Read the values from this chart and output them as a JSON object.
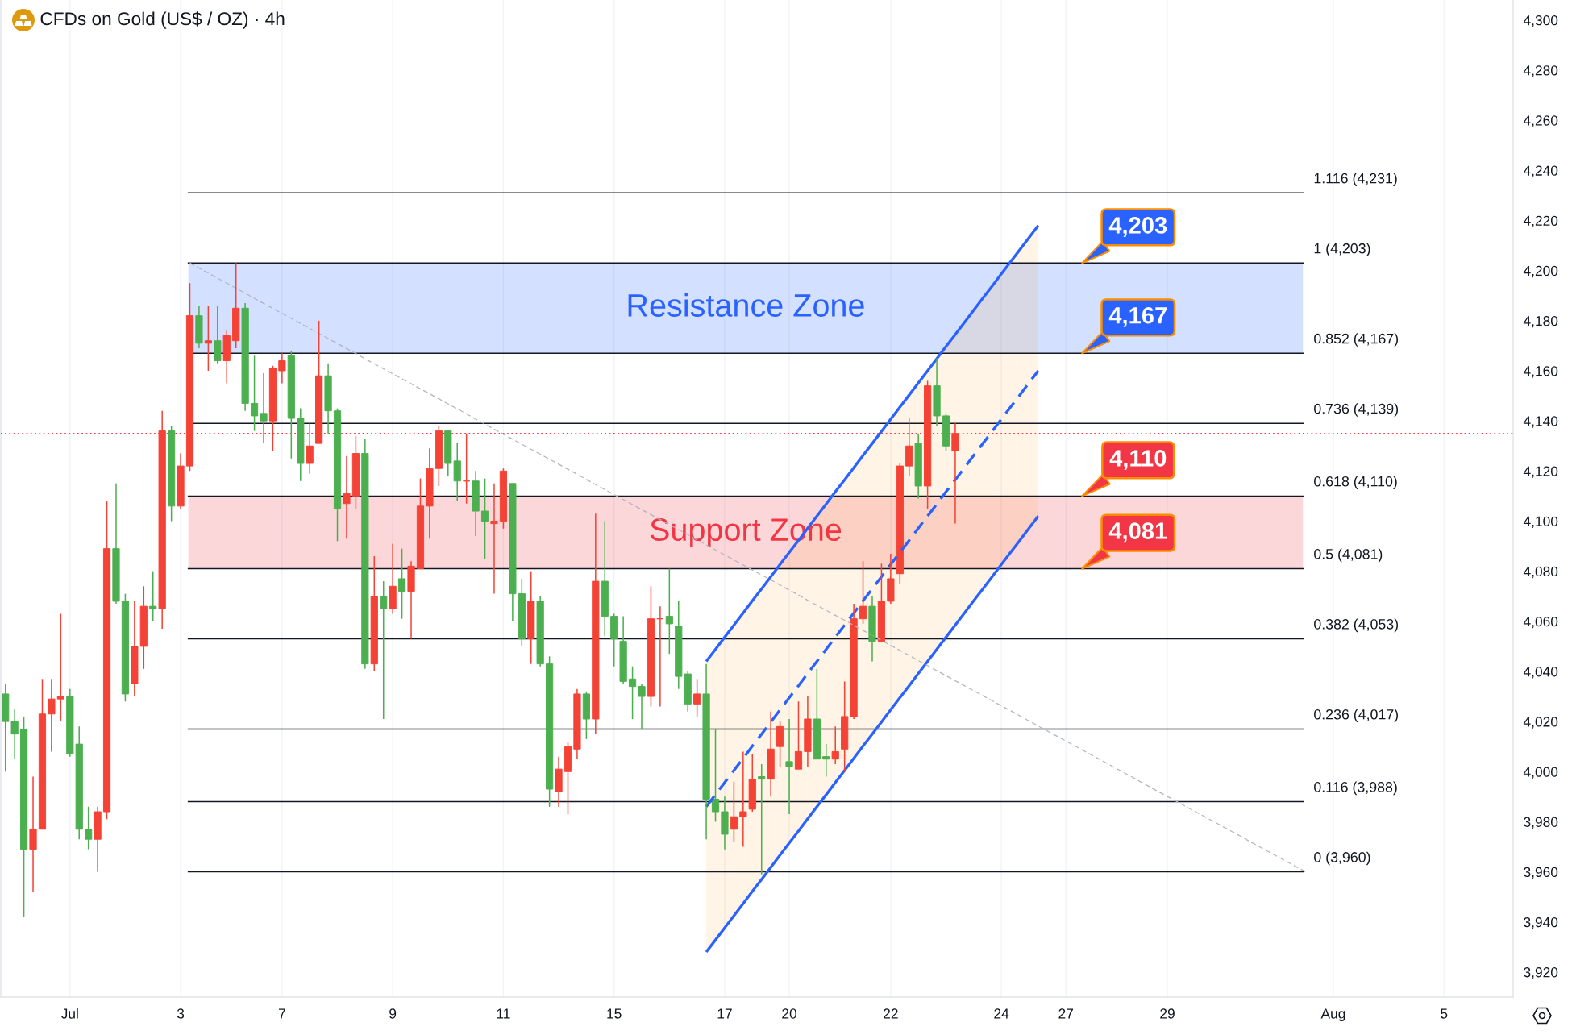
{
  "chart_data": {
    "type": "candlestick",
    "title": "CFDs on Gold (US$ / OZ) · 4h",
    "categories": [
      null,
      null,
      null,
      null,
      null,
      null,
      null,
      "Jul",
      null,
      null,
      null,
      null,
      null,
      null,
      null,
      null,
      null,
      null,
      null,
      "3",
      null,
      null,
      null,
      null,
      null,
      null,
      null,
      null,
      null,
      null,
      "7",
      null,
      null,
      null,
      null,
      null,
      null,
      null,
      null,
      null,
      null,
      null,
      "9",
      null,
      null,
      null,
      null,
      null,
      null,
      null,
      null,
      null,
      null,
      null,
      "11",
      null,
      null,
      null,
      null,
      null,
      null,
      null,
      null,
      null,
      null,
      null,
      "15",
      null,
      null,
      null,
      null,
      null,
      null,
      null,
      null,
      null,
      null,
      null,
      "17",
      null,
      null,
      null,
      null,
      null,
      null,
      "20",
      null,
      null,
      null,
      null,
      null,
      null,
      null,
      null,
      null,
      null,
      "22",
      null,
      null,
      null,
      null,
      null,
      null,
      null,
      null,
      null,
      null,
      null,
      "24",
      null,
      null,
      null,
      null,
      null,
      null,
      "27",
      null,
      null,
      null,
      null,
      null,
      null,
      null,
      null,
      null,
      null,
      "29",
      null,
      null,
      null,
      null,
      null,
      null,
      null,
      null,
      null,
      null,
      null,
      null,
      null,
      null,
      null,
      null,
      null,
      "Aug",
      null,
      null,
      null,
      null,
      null,
      null,
      null,
      null,
      null,
      null,
      null,
      "5",
      null,
      null,
      null,
      null,
      null,
      null,
      null
    ],
    "series": [
      {
        "color": "#f44336",
        "ohlc": [
          null,
          null,
          null,
          [
            3969,
            3998,
            3952,
            3977
          ],
          [
            3977,
            4037,
            3977,
            4023
          ],
          [
            4023,
            4037,
            4008,
            4029
          ],
          [
            4029,
            4063,
            4020,
            4030
          ],
          null,
          null,
          null,
          [
            3973,
            3986,
            3960,
            3984
          ],
          [
            3984,
            4108,
            3981,
            4089
          ],
          null,
          null,
          [
            4035,
            4068,
            4030,
            4050
          ],
          [
            4050,
            4074,
            4041,
            4066
          ],
          null,
          [
            4065,
            4144,
            4057,
            4136
          ],
          null,
          [
            4106,
            4127,
            4105,
            4122
          ],
          [
            4122,
            4195,
            4120,
            4182
          ],
          null,
          [
            4171,
            4186,
            4160,
            4172
          ],
          null,
          [
            4164,
            4176,
            4155,
            4174
          ],
          [
            4172,
            4203,
            4169,
            4185
          ],
          null,
          null,
          null,
          [
            4140,
            4162,
            4128,
            4161
          ],
          [
            4160,
            4167,
            4155,
            4164
          ],
          null,
          null,
          [
            4123,
            4139,
            4119,
            4130
          ],
          [
            4131,
            4180,
            4131,
            4158
          ],
          null,
          null,
          [
            4107,
            4126,
            4093,
            4111
          ],
          [
            4110,
            4134,
            4105,
            4127
          ],
          null,
          [
            4043,
            4086,
            4040,
            4070
          ],
          null,
          [
            4065,
            4091,
            4063,
            4074
          ],
          null,
          [
            4072,
            4084,
            4053,
            4082
          ],
          [
            4081,
            4117,
            4081,
            4106
          ],
          [
            4106,
            4129,
            4093,
            4121
          ],
          [
            4121,
            4138,
            4114,
            4136
          ],
          null,
          null,
          [
            4116,
            4135,
            4107,
            4116
          ],
          null,
          null,
          [
            4099,
            4115,
            4071,
            4100
          ],
          [
            4100,
            4121,
            4097,
            4120
          ],
          null,
          null,
          [
            4053,
            4080,
            4043,
            4068
          ],
          null,
          null,
          [
            3992,
            4006,
            3986,
            4001
          ],
          [
            4000,
            4012,
            3983,
            4010
          ],
          [
            4009,
            4033,
            4005,
            4031
          ],
          null,
          [
            4021,
            4103,
            4015,
            4076
          ],
          null,
          null,
          null,
          null,
          null,
          [
            4030,
            4074,
            4026,
            4061
          ],
          [
            4061,
            4066,
            4026,
            4061
          ],
          null,
          null,
          null,
          [
            4027,
            4037,
            4022,
            4031
          ],
          null,
          null,
          null,
          [
            3977,
            3996,
            3972,
            3982
          ],
          [
            3982,
            4008,
            3970,
            3984
          ],
          [
            3985,
            4007,
            3984,
            3997
          ],
          null,
          [
            3997,
            4024,
            3990,
            4009
          ],
          [
            4010,
            4020,
            4002,
            4018
          ],
          null,
          [
            4001,
            4028,
            4001,
            4008
          ],
          [
            4008,
            4030,
            4002,
            4021
          ],
          null,
          null,
          [
            4005,
            4018,
            4003,
            4008
          ],
          [
            4009,
            4036,
            4000,
            4022
          ],
          [
            4022,
            4067,
            4021,
            4061
          ],
          [
            4061,
            4084,
            4059,
            4066
          ],
          null,
          [
            4052,
            4083,
            4052,
            4068
          ],
          [
            4068,
            4087,
            4067,
            4077
          ],
          [
            4079,
            4123,
            4075,
            4122
          ],
          [
            4122,
            4141,
            4118,
            4130
          ],
          null,
          [
            4114,
            4156,
            4105,
            4154
          ],
          null,
          null,
          [
            4128,
            4139,
            4099,
            4135
          ],
          null,
          null,
          null,
          null,
          null,
          null,
          null,
          null,
          null,
          null,
          null,
          null,
          null,
          null,
          null,
          null,
          null,
          null,
          null,
          null,
          null,
          null,
          null,
          null,
          null,
          null,
          null,
          null,
          null,
          null,
          null,
          null,
          null,
          null,
          null,
          null,
          null,
          null,
          null,
          null,
          null,
          null,
          null,
          null,
          null,
          null,
          null,
          null,
          null,
          null,
          null,
          null,
          null,
          null,
          null,
          null,
          null,
          null,
          null,
          null
        ]
      },
      {
        "color": "#4caf50",
        "ohlc": [
          [
            4031,
            4035,
            4000,
            4020
          ],
          [
            4020,
            4025,
            4005,
            4015
          ],
          [
            4017,
            4022,
            3942,
            3969
          ],
          null,
          null,
          null,
          null,
          [
            4030,
            4033,
            4006,
            4007
          ],
          [
            4011,
            4018,
            3973,
            3977
          ],
          [
            3977,
            3986,
            3969,
            3973
          ],
          null,
          null,
          [
            4089,
            4115,
            4067,
            4068
          ],
          [
            4068,
            4071,
            4028,
            4031
          ],
          null,
          null,
          [
            4066,
            4080,
            4060,
            4065
          ],
          null,
          [
            4136,
            4138,
            4100,
            4106
          ],
          null,
          null,
          [
            4182,
            4186,
            4169,
            4171
          ],
          null,
          [
            4172,
            4186,
            4163,
            4164
          ],
          null,
          null,
          [
            4185,
            4187,
            4144,
            4147
          ],
          [
            4147,
            4166,
            4136,
            4142
          ],
          [
            4143,
            4159,
            4131,
            4140
          ],
          null,
          null,
          [
            4166,
            4168,
            4125,
            4141
          ],
          [
            4141,
            4145,
            4116,
            4123
          ],
          null,
          null,
          [
            4158,
            4163,
            4135,
            4144
          ],
          [
            4144,
            4145,
            4092,
            4105
          ],
          null,
          null,
          [
            4127,
            4133,
            4041,
            4043
          ],
          null,
          [
            4070,
            4076,
            4021,
            4065
          ],
          null,
          [
            4077,
            4089,
            4061,
            4072
          ],
          null,
          null,
          null,
          null,
          [
            4136,
            4136,
            4118,
            4123
          ],
          [
            4124,
            4131,
            4108,
            4116
          ],
          null,
          [
            4116,
            4120,
            4094,
            4104
          ],
          [
            4104,
            4117,
            4085,
            4100
          ],
          null,
          null,
          [
            4115,
            4115,
            4060,
            4071
          ],
          [
            4071,
            4077,
            4050,
            4053
          ],
          null,
          [
            4068,
            4070,
            4042,
            4043
          ],
          [
            4043,
            4046,
            3986,
            3993
          ],
          null,
          null,
          null,
          [
            4031,
            4032,
            4013,
            4021
          ],
          null,
          [
            4076,
            4100,
            4054,
            4062
          ],
          [
            4062,
            4063,
            4042,
            4053
          ],
          [
            4052,
            4062,
            4035,
            4036
          ],
          [
            4037,
            4042,
            4021,
            4034
          ],
          [
            4034,
            4035,
            4017,
            4030
          ],
          null,
          null,
          [
            4062,
            4081,
            4047,
            4059
          ],
          [
            4058,
            4068,
            4033,
            4038
          ],
          [
            4039,
            4040,
            4024,
            4027
          ],
          null,
          [
            4031,
            4043,
            3973,
            3989
          ],
          [
            3989,
            4017,
            3980,
            3984
          ],
          [
            3984,
            3990,
            3969,
            3975
          ],
          null,
          null,
          null,
          [
            3998,
            4003,
            3959,
            3997
          ],
          null,
          null,
          [
            4004,
            4021,
            3983,
            4002
          ],
          null,
          null,
          [
            4021,
            4041,
            4005,
            4005
          ],
          [
            4006,
            4011,
            3998,
            4005
          ],
          null,
          null,
          null,
          null,
          [
            4066,
            4070,
            4044,
            4052
          ],
          null,
          null,
          null,
          null,
          [
            4131,
            4135,
            4109,
            4114
          ],
          null,
          [
            4154,
            4165,
            4138,
            4142
          ],
          [
            4142,
            4143,
            4128,
            4130
          ],
          null,
          null,
          null,
          null,
          null,
          null,
          null,
          null,
          null,
          null,
          null,
          null,
          null,
          null,
          null,
          null,
          null,
          null,
          null,
          null,
          null,
          null,
          null,
          null,
          null,
          null,
          null,
          null,
          null,
          null,
          null,
          null,
          null,
          null,
          null,
          null,
          null,
          null,
          null,
          null,
          null,
          null,
          null,
          null,
          null,
          null,
          null,
          null,
          null,
          null,
          null,
          null,
          null,
          null,
          null,
          null,
          null,
          null,
          null,
          null,
          null
        ]
      },
      {
        "type": "line",
        "color": "#2962ff",
        "values": [
          null,
          null,
          null,
          null,
          null,
          null,
          null,
          null,
          null,
          null,
          null,
          null,
          null,
          null,
          null,
          null,
          null,
          null,
          null,
          null,
          null,
          null,
          null,
          null,
          null,
          null,
          null,
          null,
          null,
          null,
          null,
          null,
          null,
          null,
          null,
          null,
          null,
          null,
          null,
          null,
          null,
          null,
          null,
          null,
          null,
          null,
          null,
          null,
          null,
          null,
          null,
          null,
          null,
          null,
          null,
          null,
          null,
          null,
          null,
          null,
          null,
          null,
          null,
          null,
          null,
          null,
          null,
          null,
          null,
          null,
          null,
          null,
          null,
          null,
          null,
          null,
          4044,
          4048.8,
          4053.7,
          4058.5,
          4063.3,
          4068.2,
          4073,
          4077.8,
          4082.7,
          4087.5,
          4092.3,
          4097.2,
          4102,
          4106.8,
          4111.7,
          4116.5,
          4121.3,
          4126.2,
          4131,
          4135.8,
          4140.7,
          4145.5,
          4150.3,
          4155.2,
          4160,
          4164.8,
          4169.7,
          4174.5,
          4179.3,
          4184.2,
          4189,
          4193.8,
          4198.7,
          4203.5,
          4208.3,
          4213.2,
          4218,
          null,
          null,
          null,
          null,
          null,
          null,
          null,
          null,
          null,
          null,
          null,
          null,
          null,
          null,
          null,
          null,
          null,
          null,
          null,
          null,
          null,
          null,
          null,
          null,
          null,
          null,
          null,
          null,
          null,
          null,
          null,
          null,
          null,
          null,
          null,
          null,
          null,
          null,
          null,
          null,
          null,
          null,
          null,
          null,
          null,
          null,
          null,
          null,
          null,
          null,
          null
        ]
      },
      {
        "type": "line",
        "color": "#2962ff",
        "line_style": "dashed",
        "values": [
          null,
          null,
          null,
          null,
          null,
          null,
          null,
          null,
          null,
          null,
          null,
          null,
          null,
          null,
          null,
          null,
          null,
          null,
          null,
          null,
          null,
          null,
          null,
          null,
          null,
          null,
          null,
          null,
          null,
          null,
          null,
          null,
          null,
          null,
          null,
          null,
          null,
          null,
          null,
          null,
          null,
          null,
          null,
          null,
          null,
          null,
          null,
          null,
          null,
          null,
          null,
          null,
          null,
          null,
          null,
          null,
          null,
          null,
          null,
          null,
          null,
          null,
          null,
          null,
          null,
          null,
          null,
          null,
          null,
          null,
          null,
          null,
          null,
          null,
          null,
          null,
          3986,
          3990.8,
          3995.7,
          4000.5,
          4005.3,
          4010.2,
          4015,
          4019.8,
          4024.7,
          4029.5,
          4034.3,
          4039.2,
          4044,
          4048.8,
          4053.7,
          4058.5,
          4063.3,
          4068.2,
          4073,
          4077.8,
          4082.7,
          4087.5,
          4092.3,
          4097.2,
          4102,
          4106.8,
          4111.7,
          4116.5,
          4121.3,
          4126.2,
          4131,
          4135.8,
          4140.7,
          4145.5,
          4150.3,
          4155.2,
          4160,
          null,
          null,
          null,
          null,
          null,
          null,
          null,
          null,
          null,
          null,
          null,
          null,
          null,
          null,
          null,
          null,
          null,
          null,
          null,
          null,
          null,
          null,
          null,
          null,
          null,
          null,
          null,
          null,
          null,
          null,
          null,
          null,
          null,
          null,
          null,
          null,
          null,
          null,
          null,
          null,
          null,
          null,
          null,
          null,
          null,
          null,
          null,
          null,
          null,
          null,
          null
        ],
        "lower": [
          null,
          null,
          null,
          null,
          null,
          null,
          null,
          null,
          null,
          null,
          null,
          null,
          null,
          null,
          null,
          null,
          null,
          null,
          null,
          null,
          null,
          null,
          null,
          null,
          null,
          null,
          null,
          null,
          null,
          null,
          null,
          null,
          null,
          null,
          null,
          null,
          null,
          null,
          null,
          null,
          null,
          null,
          null,
          null,
          null,
          null,
          null,
          null,
          null,
          null,
          null,
          null,
          null,
          null,
          null,
          null,
          null,
          null,
          null,
          null,
          null,
          null,
          null,
          null,
          null,
          null,
          null,
          null,
          null,
          null,
          null,
          null,
          null,
          null,
          null,
          null,
          3928,
          3932.8,
          3937.7,
          3942.5,
          3947.3,
          3952.2,
          3957,
          3961.8,
          3966.7,
          3971.5,
          3976.3,
          3981.2,
          3986,
          3990.8,
          3995.7,
          4000.5,
          4005.3,
          4010.2,
          4015,
          4019.8,
          4024.7,
          4029.5,
          4034.3,
          4039.2,
          4044,
          4048.8,
          4053.7,
          4058.5,
          4063.3,
          4068.2,
          4073,
          4077.8,
          4082.7,
          4087.5,
          4092.3,
          4097.2,
          4102,
          null,
          null,
          null,
          null,
          null,
          null,
          null,
          null,
          null,
          null,
          null,
          null,
          null,
          null,
          null,
          null,
          null,
          null,
          null,
          null,
          null,
          null,
          null,
          null,
          null,
          null,
          null,
          null,
          null,
          null,
          null,
          null,
          null,
          null,
          null,
          null,
          null,
          null,
          null,
          null,
          null,
          null,
          null,
          null,
          null,
          null,
          null,
          null,
          null,
          null,
          null
        ],
        "upper": [
          null,
          null,
          null,
          null,
          null,
          null,
          null,
          null,
          null,
          null,
          null,
          null,
          null,
          null,
          null,
          null,
          null,
          null,
          null,
          null,
          null,
          null,
          null,
          null,
          null,
          null,
          null,
          null,
          null,
          null,
          null,
          null,
          null,
          null,
          null,
          null,
          null,
          null,
          null,
          null,
          null,
          null,
          null,
          null,
          null,
          null,
          null,
          null,
          null,
          null,
          null,
          null,
          null,
          null,
          null,
          null,
          null,
          null,
          null,
          null,
          null,
          null,
          null,
          null,
          null,
          null,
          null,
          null,
          null,
          null,
          null,
          null,
          null,
          null,
          null,
          null,
          4044,
          4048.8,
          4053.7,
          4058.5,
          4063.3,
          4068.2,
          4073,
          4077.8,
          4082.7,
          4087.5,
          4092.3,
          4097.2,
          4102,
          4106.8,
          4111.7,
          4116.5,
          4121.3,
          4126.2,
          4131,
          4135.8,
          4140.7,
          4145.5,
          4150.3,
          4155.2,
          4160,
          4164.8,
          4169.7,
          4174.5,
          4179.3,
          4184.2,
          4189,
          4193.8,
          4198.7,
          4203.5,
          4208.3,
          4213.2,
          4218,
          null,
          null,
          null,
          null,
          null,
          null,
          null,
          null,
          null,
          null,
          null,
          null,
          null,
          null,
          null,
          null,
          null,
          null,
          null,
          null,
          null,
          null,
          null,
          null,
          null,
          null,
          null,
          null,
          null,
          null,
          null,
          null,
          null,
          null,
          null,
          null,
          null,
          null,
          null,
          null,
          null,
          null,
          null,
          null,
          null,
          null,
          null,
          null,
          null,
          null,
          null
        ]
      },
      {
        "type": "line",
        "color": "#2962ff",
        "values": [
          null,
          null,
          null,
          null,
          null,
          null,
          null,
          null,
          null,
          null,
          null,
          null,
          null,
          null,
          null,
          null,
          null,
          null,
          null,
          null,
          null,
          null,
          null,
          null,
          null,
          null,
          null,
          null,
          null,
          null,
          null,
          null,
          null,
          null,
          null,
          null,
          null,
          null,
          null,
          null,
          null,
          null,
          null,
          null,
          null,
          null,
          null,
          null,
          null,
          null,
          null,
          null,
          null,
          null,
          null,
          null,
          null,
          null,
          null,
          null,
          null,
          null,
          null,
          null,
          null,
          null,
          null,
          null,
          null,
          null,
          null,
          null,
          null,
          null,
          null,
          null,
          3928,
          3932.8,
          3937.7,
          3942.5,
          3947.3,
          3952.2,
          3957,
          3961.8,
          3966.7,
          3971.5,
          3976.3,
          3981.2,
          3986,
          3990.8,
          3995.7,
          4000.5,
          4005.3,
          4010.2,
          4015,
          4019.8,
          4024.7,
          4029.5,
          4034.3,
          4039.2,
          4044,
          4048.8,
          4053.7,
          4058.5,
          4063.3,
          4068.2,
          4073,
          4077.8,
          4082.7,
          4087.5,
          4092.3,
          4097.2,
          4102,
          null,
          null,
          null,
          null,
          null,
          null,
          null,
          null,
          null,
          null,
          null,
          null,
          null,
          null,
          null,
          null,
          null,
          null,
          null,
          null,
          null,
          null,
          null,
          null,
          null,
          null,
          null,
          null,
          null,
          null,
          null,
          null,
          null,
          null,
          null,
          null,
          null,
          null,
          null,
          null,
          null,
          null,
          null,
          null,
          null,
          null,
          null,
          null,
          null,
          null,
          null
        ]
      },
      {
        "type": "line",
        "color": "#b2b5be",
        "line_style": "dashed",
        "values": [
          null,
          null,
          null,
          null,
          null,
          null,
          null,
          null,
          null,
          null,
          null,
          null,
          null,
          null,
          null,
          null,
          null,
          null,
          null,
          null,
          4203,
          4201,
          4199,
          4197,
          4195,
          4193,
          4191,
          4188.9,
          4186.9,
          4184.9,
          4182.9,
          4180.9,
          4178.9,
          4176.9,
          4174.9,
          4172.9,
          4170.9,
          4168.9,
          4166.9,
          4164.8,
          4162.8,
          4160.8,
          4158.8,
          4156.8,
          4154.8,
          4152.8,
          4150.8,
          4148.8,
          4146.8,
          4144.8,
          4142.8,
          4140.7,
          4138.7,
          4136.7,
          4134.7,
          4132.7,
          4130.7,
          4128.7,
          4126.7,
          4124.7,
          4122.7,
          4120.7,
          4118.7,
          4116.6,
          4114.6,
          4112.6,
          4110.6,
          4108.6,
          4106.6,
          4104.6,
          4102.6,
          4100.6,
          4098.6,
          4096.6,
          4094.6,
          4092.5,
          4090.5,
          4088.5,
          4086.5,
          4084.5,
          4082.5,
          4080.5,
          4078.5,
          4076.5,
          4074.5,
          4072.5,
          4070.5,
          4068.4,
          4066.4,
          4064.4,
          4062.4,
          4060.4,
          4058.4,
          4056.4,
          4054.4,
          4052.4,
          4050.4,
          4048.4,
          4046.4,
          4044.3,
          4042.3,
          4040.3,
          4038.3,
          4036.3,
          4034.3,
          4032.3,
          4030.3,
          4028.3,
          4026.3,
          4024.3,
          4022.3,
          4020.2,
          4018.2,
          4016.2,
          4014.2,
          4012.2,
          4010.2,
          4008.2,
          4006.2,
          4004.2,
          4002.2,
          4000.2,
          3998.2,
          3996.1,
          3994.1,
          3992.1,
          3990.1,
          3988.1,
          3986.1,
          3984.1,
          3982.1,
          3980.1,
          3978.1,
          3976.1,
          3974.1,
          3972,
          3970,
          3968,
          3966,
          3964,
          3962,
          3960,
          null,
          null,
          null,
          null,
          null,
          null,
          null,
          null,
          null,
          null,
          null,
          null,
          null,
          null,
          null,
          null,
          null,
          null,
          null,
          null,
          null,
          null
        ]
      }
    ],
    "ylim": [
      3910,
      4308
    ],
    "yticks": [
      {
        "value": 3920,
        "label": "3,920"
      },
      {
        "value": 3940,
        "label": "3,940"
      },
      {
        "value": 3960,
        "label": "3,960"
      },
      {
        "value": 3980,
        "label": "3,980"
      },
      {
        "value": 4000,
        "label": "4,000"
      },
      {
        "value": 4020,
        "label": "4,020"
      },
      {
        "value": 4040,
        "label": "4,040"
      },
      {
        "value": 4060,
        "label": "4,060"
      },
      {
        "value": 4080,
        "label": "4,080"
      },
      {
        "value": 4100,
        "label": "4,100"
      },
      {
        "value": 4120,
        "label": "4,120"
      },
      {
        "value": 4140,
        "label": "4,140"
      },
      {
        "value": 4160,
        "label": "4,160"
      },
      {
        "value": 4180,
        "label": "4,180"
      },
      {
        "value": 4200,
        "label": "4,200"
      },
      {
        "value": 4220,
        "label": "4,220"
      },
      {
        "value": 4240,
        "label": "4,240"
      },
      {
        "value": 4260,
        "label": "4,260"
      },
      {
        "value": 4280,
        "label": "4,280"
      },
      {
        "value": 4300,
        "label": "4,300"
      }
    ],
    "grid": "x",
    "bands": [
      {
        "axis": "y",
        "from": 4167,
        "to": 4203,
        "label": "Resistance Zone",
        "color": "#2962ff"
      },
      {
        "axis": "y",
        "from": 4081,
        "to": 4110,
        "label": "Support Zone",
        "color": "#f23645"
      }
    ],
    "ref_lines": [
      {
        "axis": "y",
        "value": 4231,
        "label": "1.116 (4,231)",
        "color": "#131722"
      },
      {
        "axis": "y",
        "value": 4203,
        "label": "1 (4,203)",
        "color": "#131722"
      },
      {
        "axis": "y",
        "value": 4167,
        "label": "0.852 (4,167)",
        "color": "#131722"
      },
      {
        "axis": "y",
        "value": 4139,
        "label": "0.736 (4,139)",
        "color": "#131722"
      },
      {
        "axis": "y",
        "value": 4135,
        "color": "#f23645",
        "line_style": "dotted"
      },
      {
        "axis": "y",
        "value": 4110,
        "label": "0.618 (4,110)",
        "color": "#131722"
      },
      {
        "axis": "y",
        "value": 4081,
        "label": "0.5 (4,081)",
        "color": "#131722"
      },
      {
        "axis": "y",
        "value": 4053,
        "label": "0.382 (4,053)",
        "color": "#131722"
      },
      {
        "axis": "y",
        "value": 4017,
        "label": "0.236 (4,017)",
        "color": "#131722"
      },
      {
        "axis": "y",
        "value": 3988,
        "label": "0.116 (3,988)",
        "color": "#131722"
      },
      {
        "axis": "y",
        "value": 3960,
        "label": "0 (3,960)",
        "color": "#131722"
      }
    ],
    "annotations": [
      {
        "text": "4,203",
        "y": 4203
      },
      {
        "text": "4,167",
        "y": 4167
      },
      {
        "text": "4,110",
        "y": 4110
      },
      {
        "text": "4,081",
        "y": 4081
      }
    ]
  }
}
